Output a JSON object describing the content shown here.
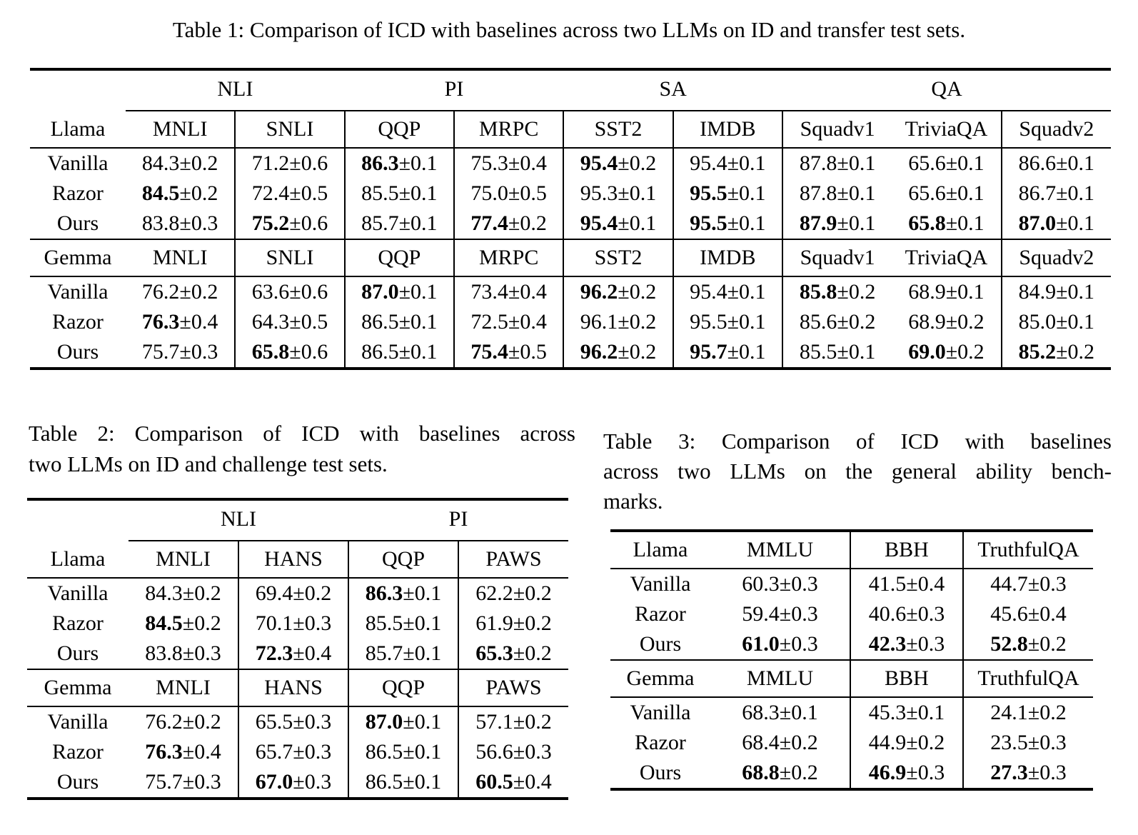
{
  "page": {
    "background": "#ffffff",
    "text_color": "#000000",
    "rule_color": "#000000"
  },
  "table1": {
    "name": "table-1",
    "caption": "Table 1: Comparison of ICD with baselines across two LLMs on ID and transfer test sets.",
    "groups": [
      {
        "label": "NLI",
        "span": 2
      },
      {
        "label": "PI",
        "span": 2
      },
      {
        "label": "SA",
        "span": 2
      },
      {
        "label": "QA",
        "span": 3
      }
    ],
    "columns": [
      "MNLI",
      "SNLI",
      "QQP",
      "MRPC",
      "SST2",
      "IMDB",
      "Squadv1",
      "TriviaQA",
      "Squadv2"
    ],
    "separators": [
      1,
      2,
      3,
      4,
      5,
      6,
      8
    ],
    "sections": [
      {
        "model": "Llama",
        "rows": [
          {
            "label": "Vanilla",
            "cells": [
              [
                "84.3",
                "±0.2",
                0
              ],
              [
                "71.2",
                "±0.6",
                0
              ],
              [
                "86.3",
                "±0.1",
                1
              ],
              [
                "75.3",
                "±0.4",
                0
              ],
              [
                "95.4",
                "±0.2",
                1
              ],
              [
                "95.4",
                "±0.1",
                0
              ],
              [
                "87.8",
                "±0.1",
                0
              ],
              [
                "65.6",
                "±0.1",
                0
              ],
              [
                "86.6",
                "±0.1",
                0
              ]
            ]
          },
          {
            "label": "Razor",
            "cells": [
              [
                "84.5",
                "±0.2",
                1
              ],
              [
                "72.4",
                "±0.5",
                0
              ],
              [
                "85.5",
                "±0.1",
                0
              ],
              [
                "75.0",
                "±0.5",
                0
              ],
              [
                "95.3",
                "±0.1",
                0
              ],
              [
                "95.5",
                "±0.1",
                1
              ],
              [
                "87.8",
                "±0.1",
                0
              ],
              [
                "65.6",
                "±0.1",
                0
              ],
              [
                "86.7",
                "±0.1",
                0
              ]
            ]
          },
          {
            "label": "Ours",
            "cells": [
              [
                "83.8",
                "±0.3",
                0
              ],
              [
                "75.2",
                "±0.6",
                1
              ],
              [
                "85.7",
                "±0.1",
                0
              ],
              [
                "77.4",
                "±0.2",
                1
              ],
              [
                "95.4",
                "±0.1",
                1
              ],
              [
                "95.5",
                "±0.1",
                1
              ],
              [
                "87.9",
                "±0.1",
                1
              ],
              [
                "65.8",
                "±0.1",
                1
              ],
              [
                "87.0",
                "±0.1",
                1
              ]
            ]
          }
        ]
      },
      {
        "model": "Gemma",
        "rows": [
          {
            "label": "Vanilla",
            "cells": [
              [
                "76.2",
                "±0.2",
                0
              ],
              [
                "63.6",
                "±0.6",
                0
              ],
              [
                "87.0",
                "±0.1",
                1
              ],
              [
                "73.4",
                "±0.4",
                0
              ],
              [
                "96.2",
                "±0.2",
                1
              ],
              [
                "95.4",
                "±0.1",
                0
              ],
              [
                "85.8",
                "±0.2",
                1
              ],
              [
                "68.9",
                "±0.1",
                0
              ],
              [
                "84.9",
                "±0.1",
                0
              ]
            ]
          },
          {
            "label": "Razor",
            "cells": [
              [
                "76.3",
                "±0.4",
                1
              ],
              [
                "64.3",
                "±0.5",
                0
              ],
              [
                "86.5",
                "±0.1",
                0
              ],
              [
                "72.5",
                "±0.4",
                0
              ],
              [
                "96.1",
                "±0.2",
                0
              ],
              [
                "95.5",
                "±0.1",
                0
              ],
              [
                "85.6",
                "±0.2",
                0
              ],
              [
                "68.9",
                "±0.2",
                0
              ],
              [
                "85.0",
                "±0.1",
                0
              ]
            ]
          },
          {
            "label": "Ours",
            "cells": [
              [
                "75.7",
                "±0.3",
                0
              ],
              [
                "65.8",
                "±0.6",
                1
              ],
              [
                "86.5",
                "±0.1",
                0
              ],
              [
                "75.4",
                "±0.5",
                1
              ],
              [
                "96.2",
                "±0.2",
                1
              ],
              [
                "95.7",
                "±0.1",
                1
              ],
              [
                "85.5",
                "±0.1",
                0
              ],
              [
                "69.0",
                "±0.2",
                1
              ],
              [
                "85.2",
                "±0.2",
                1
              ]
            ]
          }
        ]
      }
    ]
  },
  "table2": {
    "name": "table-2",
    "caption_lines": [
      "Table 2: Comparison of ICD with baselines across",
      "two LLMs on ID and challenge test sets."
    ],
    "groups": [
      {
        "label": "NLI",
        "span": 2
      },
      {
        "label": "PI",
        "span": 2
      }
    ],
    "columns": [
      "MNLI",
      "HANS",
      "QQP",
      "PAWS"
    ],
    "separators": [
      1,
      2,
      3
    ],
    "sections": [
      {
        "model": "Llama",
        "rows": [
          {
            "label": "Vanilla",
            "cells": [
              [
                "84.3",
                "±0.2",
                0
              ],
              [
                "69.4",
                "±0.2",
                0
              ],
              [
                "86.3",
                "±0.1",
                1
              ],
              [
                "62.2",
                "±0.2",
                0
              ]
            ]
          },
          {
            "label": "Razor",
            "cells": [
              [
                "84.5",
                "±0.2",
                1
              ],
              [
                "70.1",
                "±0.3",
                0
              ],
              [
                "85.5",
                "±0.1",
                0
              ],
              [
                "61.9",
                "±0.2",
                0
              ]
            ]
          },
          {
            "label": "Ours",
            "cells": [
              [
                "83.8",
                "±0.3",
                0
              ],
              [
                "72.3",
                "±0.4",
                1
              ],
              [
                "85.7",
                "±0.1",
                0
              ],
              [
                "65.3",
                "±0.2",
                1
              ]
            ]
          }
        ]
      },
      {
        "model": "Gemma",
        "rows": [
          {
            "label": "Vanilla",
            "cells": [
              [
                "76.2",
                "±0.2",
                0
              ],
              [
                "65.5",
                "±0.3",
                0
              ],
              [
                "87.0",
                "±0.1",
                1
              ],
              [
                "57.1",
                "±0.2",
                0
              ]
            ]
          },
          {
            "label": "Razor",
            "cells": [
              [
                "76.3",
                "±0.4",
                1
              ],
              [
                "65.7",
                "±0.3",
                0
              ],
              [
                "86.5",
                "±0.1",
                0
              ],
              [
                "56.6",
                "±0.3",
                0
              ]
            ]
          },
          {
            "label": "Ours",
            "cells": [
              [
                "75.7",
                "±0.3",
                0
              ],
              [
                "67.0",
                "±0.3",
                1
              ],
              [
                "86.5",
                "±0.1",
                0
              ],
              [
                "60.5",
                "±0.4",
                1
              ]
            ]
          }
        ]
      }
    ]
  },
  "table3": {
    "name": "table-3",
    "caption_lines": [
      "Table 3: Comparison of ICD with baselines",
      "across two LLMs on the general ability bench-",
      "marks."
    ],
    "groups": null,
    "columns": [
      "MMLU",
      "BBH",
      "TruthfulQA"
    ],
    "separators": [
      1,
      2
    ],
    "sections": [
      {
        "model": "Llama",
        "rows": [
          {
            "label": "Vanilla",
            "cells": [
              [
                "60.3",
                "±0.3",
                0
              ],
              [
                "41.5",
                "±0.4",
                0
              ],
              [
                "44.7",
                "±0.3",
                0
              ]
            ]
          },
          {
            "label": "Razor",
            "cells": [
              [
                "59.4",
                "±0.3",
                0
              ],
              [
                "40.6",
                "±0.3",
                0
              ],
              [
                "45.6",
                "±0.4",
                0
              ]
            ]
          },
          {
            "label": "Ours",
            "cells": [
              [
                "61.0",
                "±0.3",
                1
              ],
              [
                "42.3",
                "±0.3",
                1
              ],
              [
                "52.8",
                "±0.2",
                1
              ]
            ]
          }
        ]
      },
      {
        "model": "Gemma",
        "rows": [
          {
            "label": "Vanilla",
            "cells": [
              [
                "68.3",
                "±0.1",
                0
              ],
              [
                "45.3",
                "±0.1",
                0
              ],
              [
                "24.1",
                "±0.2",
                0
              ]
            ]
          },
          {
            "label": "Razor",
            "cells": [
              [
                "68.4",
                "±0.2",
                0
              ],
              [
                "44.9",
                "±0.2",
                0
              ],
              [
                "23.5",
                "±0.3",
                0
              ]
            ]
          },
          {
            "label": "Ours",
            "cells": [
              [
                "68.8",
                "±0.2",
                1
              ],
              [
                "46.9",
                "±0.3",
                1
              ],
              [
                "27.3",
                "±0.3",
                1
              ]
            ]
          }
        ]
      }
    ]
  }
}
